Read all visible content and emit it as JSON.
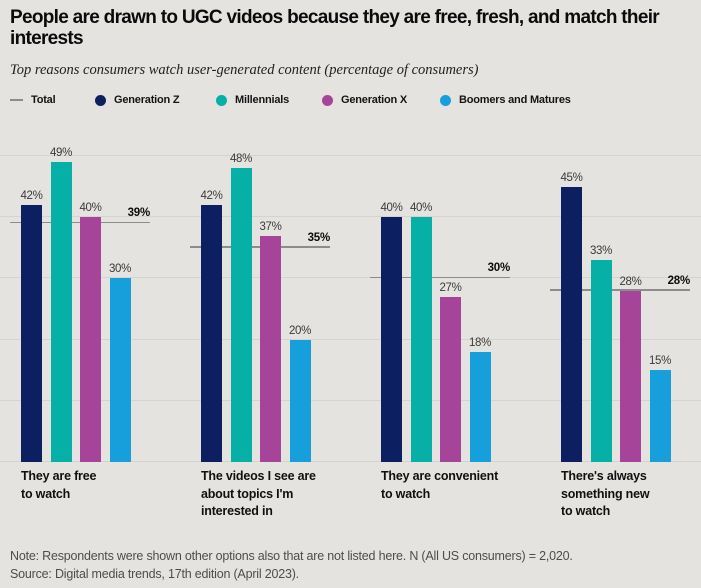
{
  "page": {
    "title": "People are drawn to UGC videos because they are free, fresh, and match their interests",
    "subtitle": "Top reasons consumers watch user-generated content (percentage of consumers)",
    "note": "Note: Respondents were shown other options also that are not listed here. N (All US consumers) = 2,020.",
    "source": "Source: Digital media trends, 17th edition (April 2023)."
  },
  "colors": {
    "background": "#e4e3e0",
    "generation_z": "#0c2061",
    "millennials": "#06b0a6",
    "generation_x": "#a64499",
    "boomers_and_matures": "#169fdb",
    "total_line": "#8c8c8c",
    "gridline": "#d4d3d0"
  },
  "legend": {
    "items": [
      {
        "label": "Total",
        "marker": "dash",
        "color": "#8c8c8c"
      },
      {
        "label": "Generation Z",
        "marker": "dot",
        "color": "#0c2061"
      },
      {
        "label": "Millennials",
        "marker": "dot",
        "color": "#06b0a6"
      },
      {
        "label": "Generation X",
        "marker": "dot",
        "color": "#a64499"
      },
      {
        "label": "Boomers and Matures",
        "marker": "dot",
        "color": "#169fdb"
      }
    ]
  },
  "chart_data": {
    "type": "bar",
    "title": "People are drawn to UGC videos because they are free, fresh, and match their interests",
    "subtitle": "Top reasons consumers watch user-generated content (percentage of consumers)",
    "categories": [
      "They are free to watch",
      "The videos I see are about topics I'm interested in",
      "They are convenient to watch",
      "There's always something new to watch"
    ],
    "category_display_lines": [
      [
        "They are free",
        "to watch"
      ],
      [
        "The videos I see are",
        "about topics I'm",
        "interested in"
      ],
      [
        "They are convenient",
        "to watch"
      ],
      [
        "There's always",
        "something new",
        "to watch"
      ]
    ],
    "series": [
      {
        "name": "Generation Z",
        "color": "#0c2061",
        "values": [
          42,
          42,
          40,
          45
        ]
      },
      {
        "name": "Millennials",
        "color": "#06b0a6",
        "values": [
          49,
          48,
          40,
          33
        ]
      },
      {
        "name": "Generation X",
        "color": "#a64499",
        "values": [
          40,
          37,
          27,
          28
        ]
      },
      {
        "name": "Boomers and Matures",
        "color": "#169fdb",
        "values": [
          30,
          20,
          18,
          15
        ]
      }
    ],
    "total_line": {
      "name": "Total",
      "values": [
        39,
        35,
        30,
        28
      ],
      "color": "#8c8c8c"
    },
    "value_suffix": "%",
    "ylim": [
      0,
      52
    ],
    "gridlines": [
      10,
      20,
      30,
      40,
      50
    ],
    "grid": "horizontal",
    "legend_position": "top"
  }
}
